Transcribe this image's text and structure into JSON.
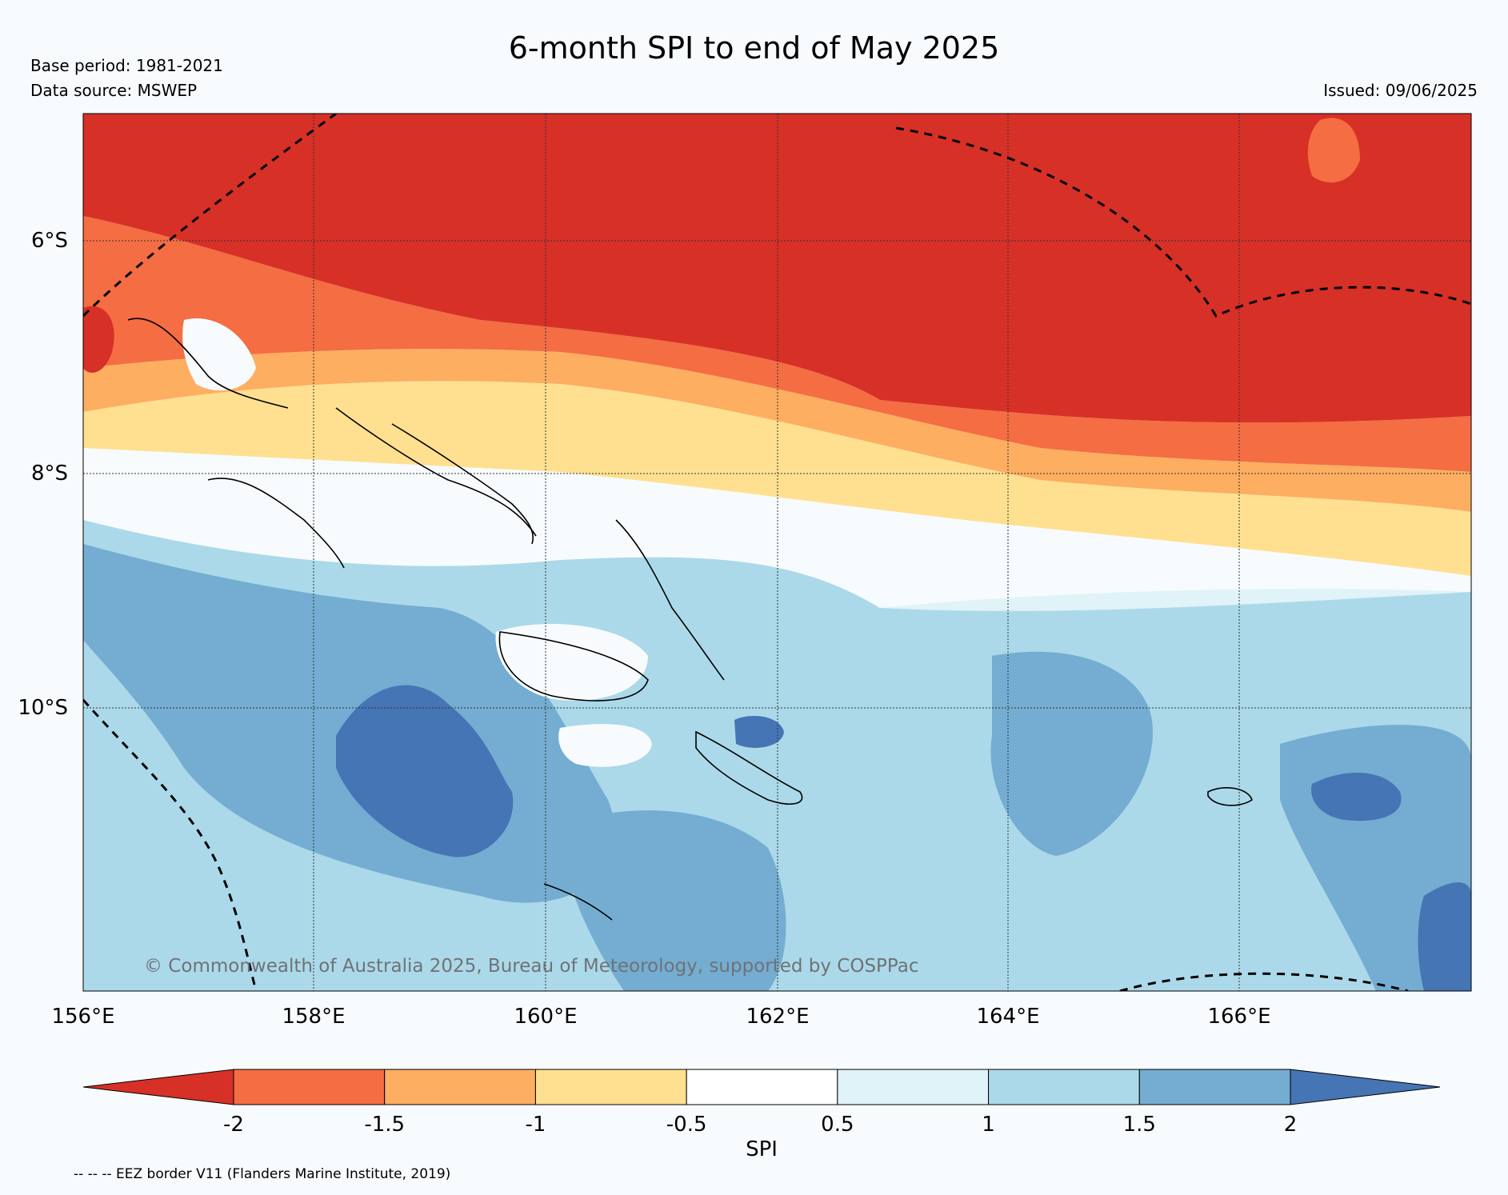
{
  "header": {
    "title": "6-month SPI to end of May 2025",
    "base_period": "Base period: 1981-2021",
    "data_source": "Data source: MSWEP",
    "issued": "Issued: 09/06/2025"
  },
  "map": {
    "lat_labels": [
      "6°S",
      "8°S",
      "10°S"
    ],
    "lon_labels": [
      "156°E",
      "158°E",
      "160°E",
      "162°E",
      "164°E",
      "166°E"
    ],
    "copyright": "© Commonwealth of Australia 2025, Bureau of Meteorology, supported by COSPPac",
    "eez_note": "-- -- -- EEZ border V11 (Flanders Marine Institute, 2019)"
  },
  "colorbar": {
    "label": "SPI",
    "ticks": [
      "-2",
      "-1.5",
      "-1",
      "-0.5",
      "0.5",
      "1",
      "1.5",
      "2"
    ],
    "colors": [
      "#d73027",
      "#f46d43",
      "#fdae61",
      "#fee090",
      "#ffffff",
      "#e0f3f8",
      "#abd9e9",
      "#74add1",
      "#4575b4"
    ]
  }
}
